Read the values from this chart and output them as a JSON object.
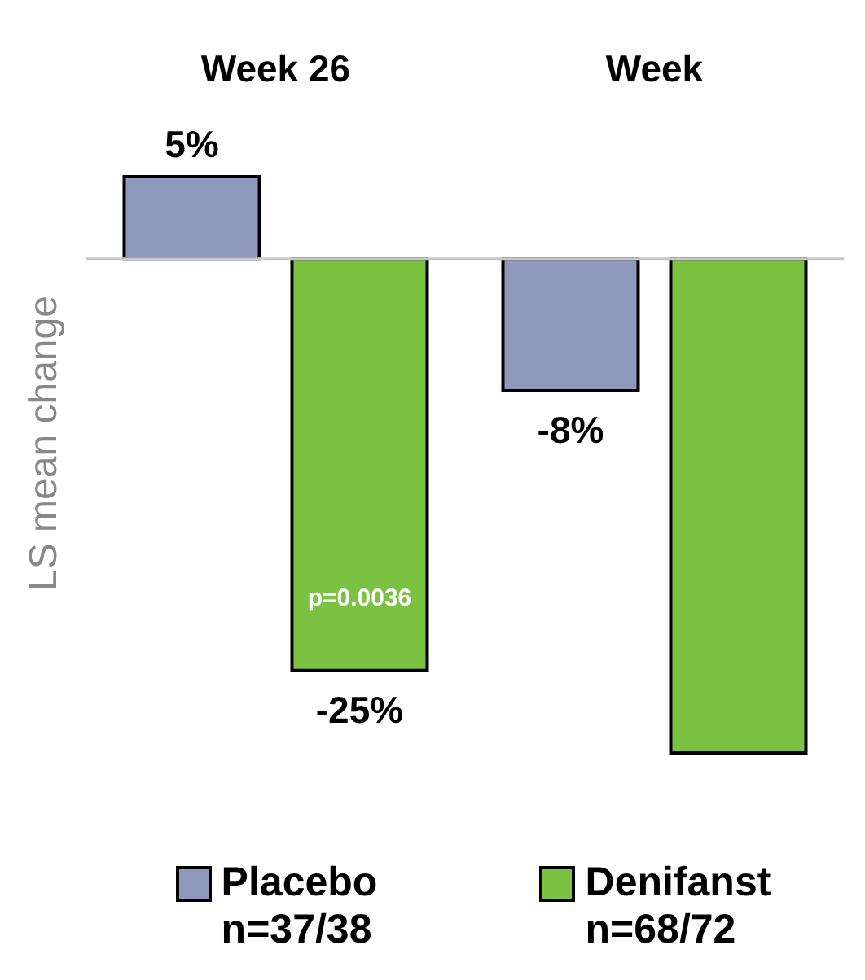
{
  "chart_data": {
    "type": "bar",
    "categories": [
      "Week 26",
      "Week"
    ],
    "ylabel": "LS mean change",
    "legend": "bottom",
    "series": [
      {
        "name": "Placebo",
        "color": "#8f98bd",
        "values": [
          5,
          -8
        ],
        "value_labels": [
          "5%",
          "-8%"
        ]
      },
      {
        "name": "Denifanst",
        "color": "#7cc242",
        "values": [
          -25,
          -30
        ],
        "value_labels": [
          "-25%",
          null
        ]
      }
    ],
    "annotations": [
      "p=0.0036",
      "n=37/38",
      "n=68/72"
    ]
  }
}
